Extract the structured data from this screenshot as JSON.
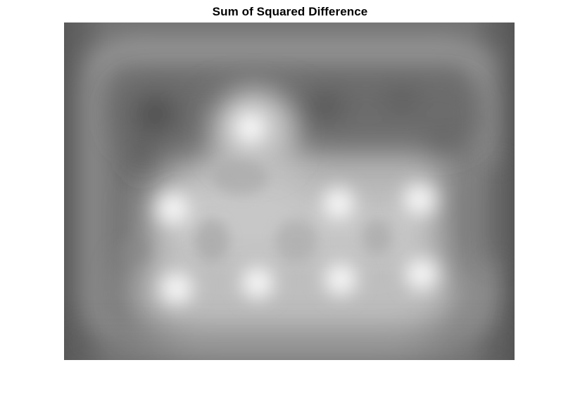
{
  "figure": {
    "title": "Sum of Squared Difference"
  },
  "colormap": {
    "base": "#7f7f7f",
    "dark": "#3c3c3c",
    "light": "#f8f8f8"
  }
}
